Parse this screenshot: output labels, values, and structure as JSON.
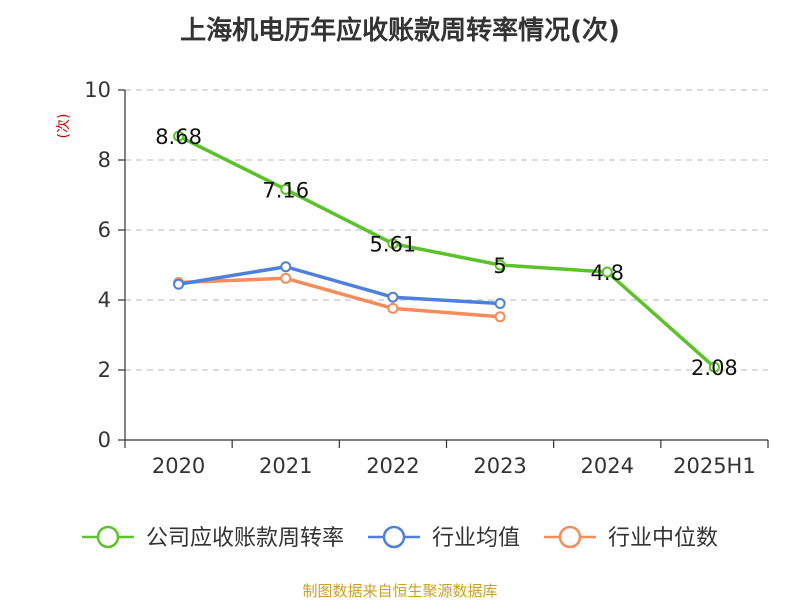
{
  "chart_data": {
    "type": "line",
    "title": "上海机电历年应收账款周转率情况(次)",
    "ylabel": "(次)",
    "xlabel": "",
    "categories": [
      "2020",
      "2021",
      "2022",
      "2023",
      "2024",
      "2025H1"
    ],
    "ylim": [
      0,
      10
    ],
    "yticks": [
      0,
      2,
      4,
      6,
      8,
      10
    ],
    "grid": true,
    "legend_position": "bottom",
    "series": [
      {
        "name": "公司应收账款周转率",
        "color": "#5cc22a",
        "values": [
          8.68,
          7.16,
          5.61,
          5,
          4.8,
          2.08
        ],
        "labels": [
          "8.68",
          "7.16",
          "5.61",
          "5",
          "4.8",
          "2.08"
        ]
      },
      {
        "name": "行业均值",
        "color": "#4f7fdc",
        "values": [
          4.45,
          4.95,
          4.08,
          3.9,
          null,
          null
        ]
      },
      {
        "name": "行业中位数",
        "color": "#f58c5a",
        "values": [
          4.5,
          4.62,
          3.76,
          3.52,
          null,
          null
        ]
      }
    ]
  },
  "source": "制图数据来自恒生聚源数据库"
}
